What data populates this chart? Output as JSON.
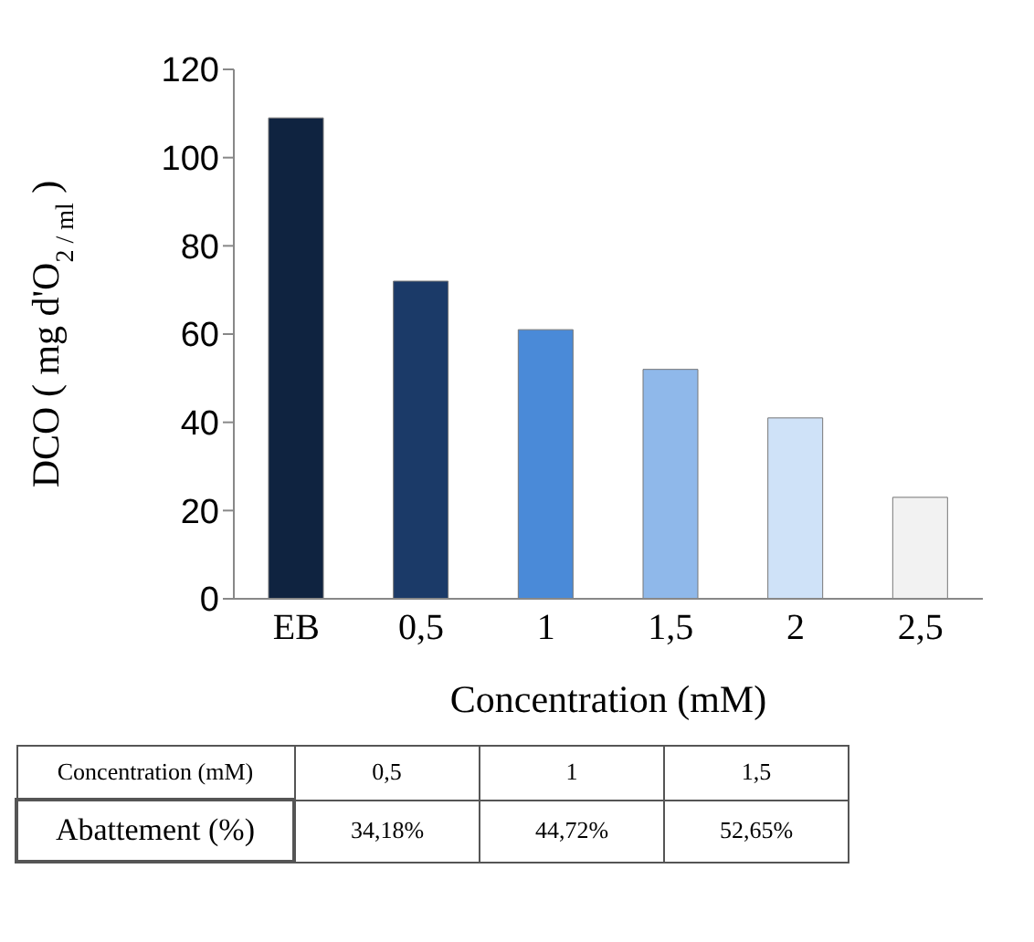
{
  "chart_data": {
    "type": "bar",
    "xlabel": "Concentration (mM)",
    "ylabel": "DCO ( mg d'O$_{2 / ml}$ )",
    "categories": [
      "EB",
      "0,5",
      "1",
      "1,5",
      "2",
      "2,5"
    ],
    "values": [
      109,
      72,
      61,
      52,
      41,
      23
    ],
    "colors": [
      "#0f2340",
      "#1b3a68",
      "#4a8ad8",
      "#8fb8ea",
      "#cfe2f8",
      "#f2f2f2"
    ],
    "ylim": [
      0,
      120
    ],
    "yticks": [
      0,
      20,
      40,
      60,
      80,
      100,
      120
    ],
    "grid": false,
    "annotations": [
      "Concentration (mM)",
      "0,5",
      "1",
      "1,5",
      "Abattement (%)",
      "34,18%",
      "44,72%",
      "52,65%"
    ]
  }
}
